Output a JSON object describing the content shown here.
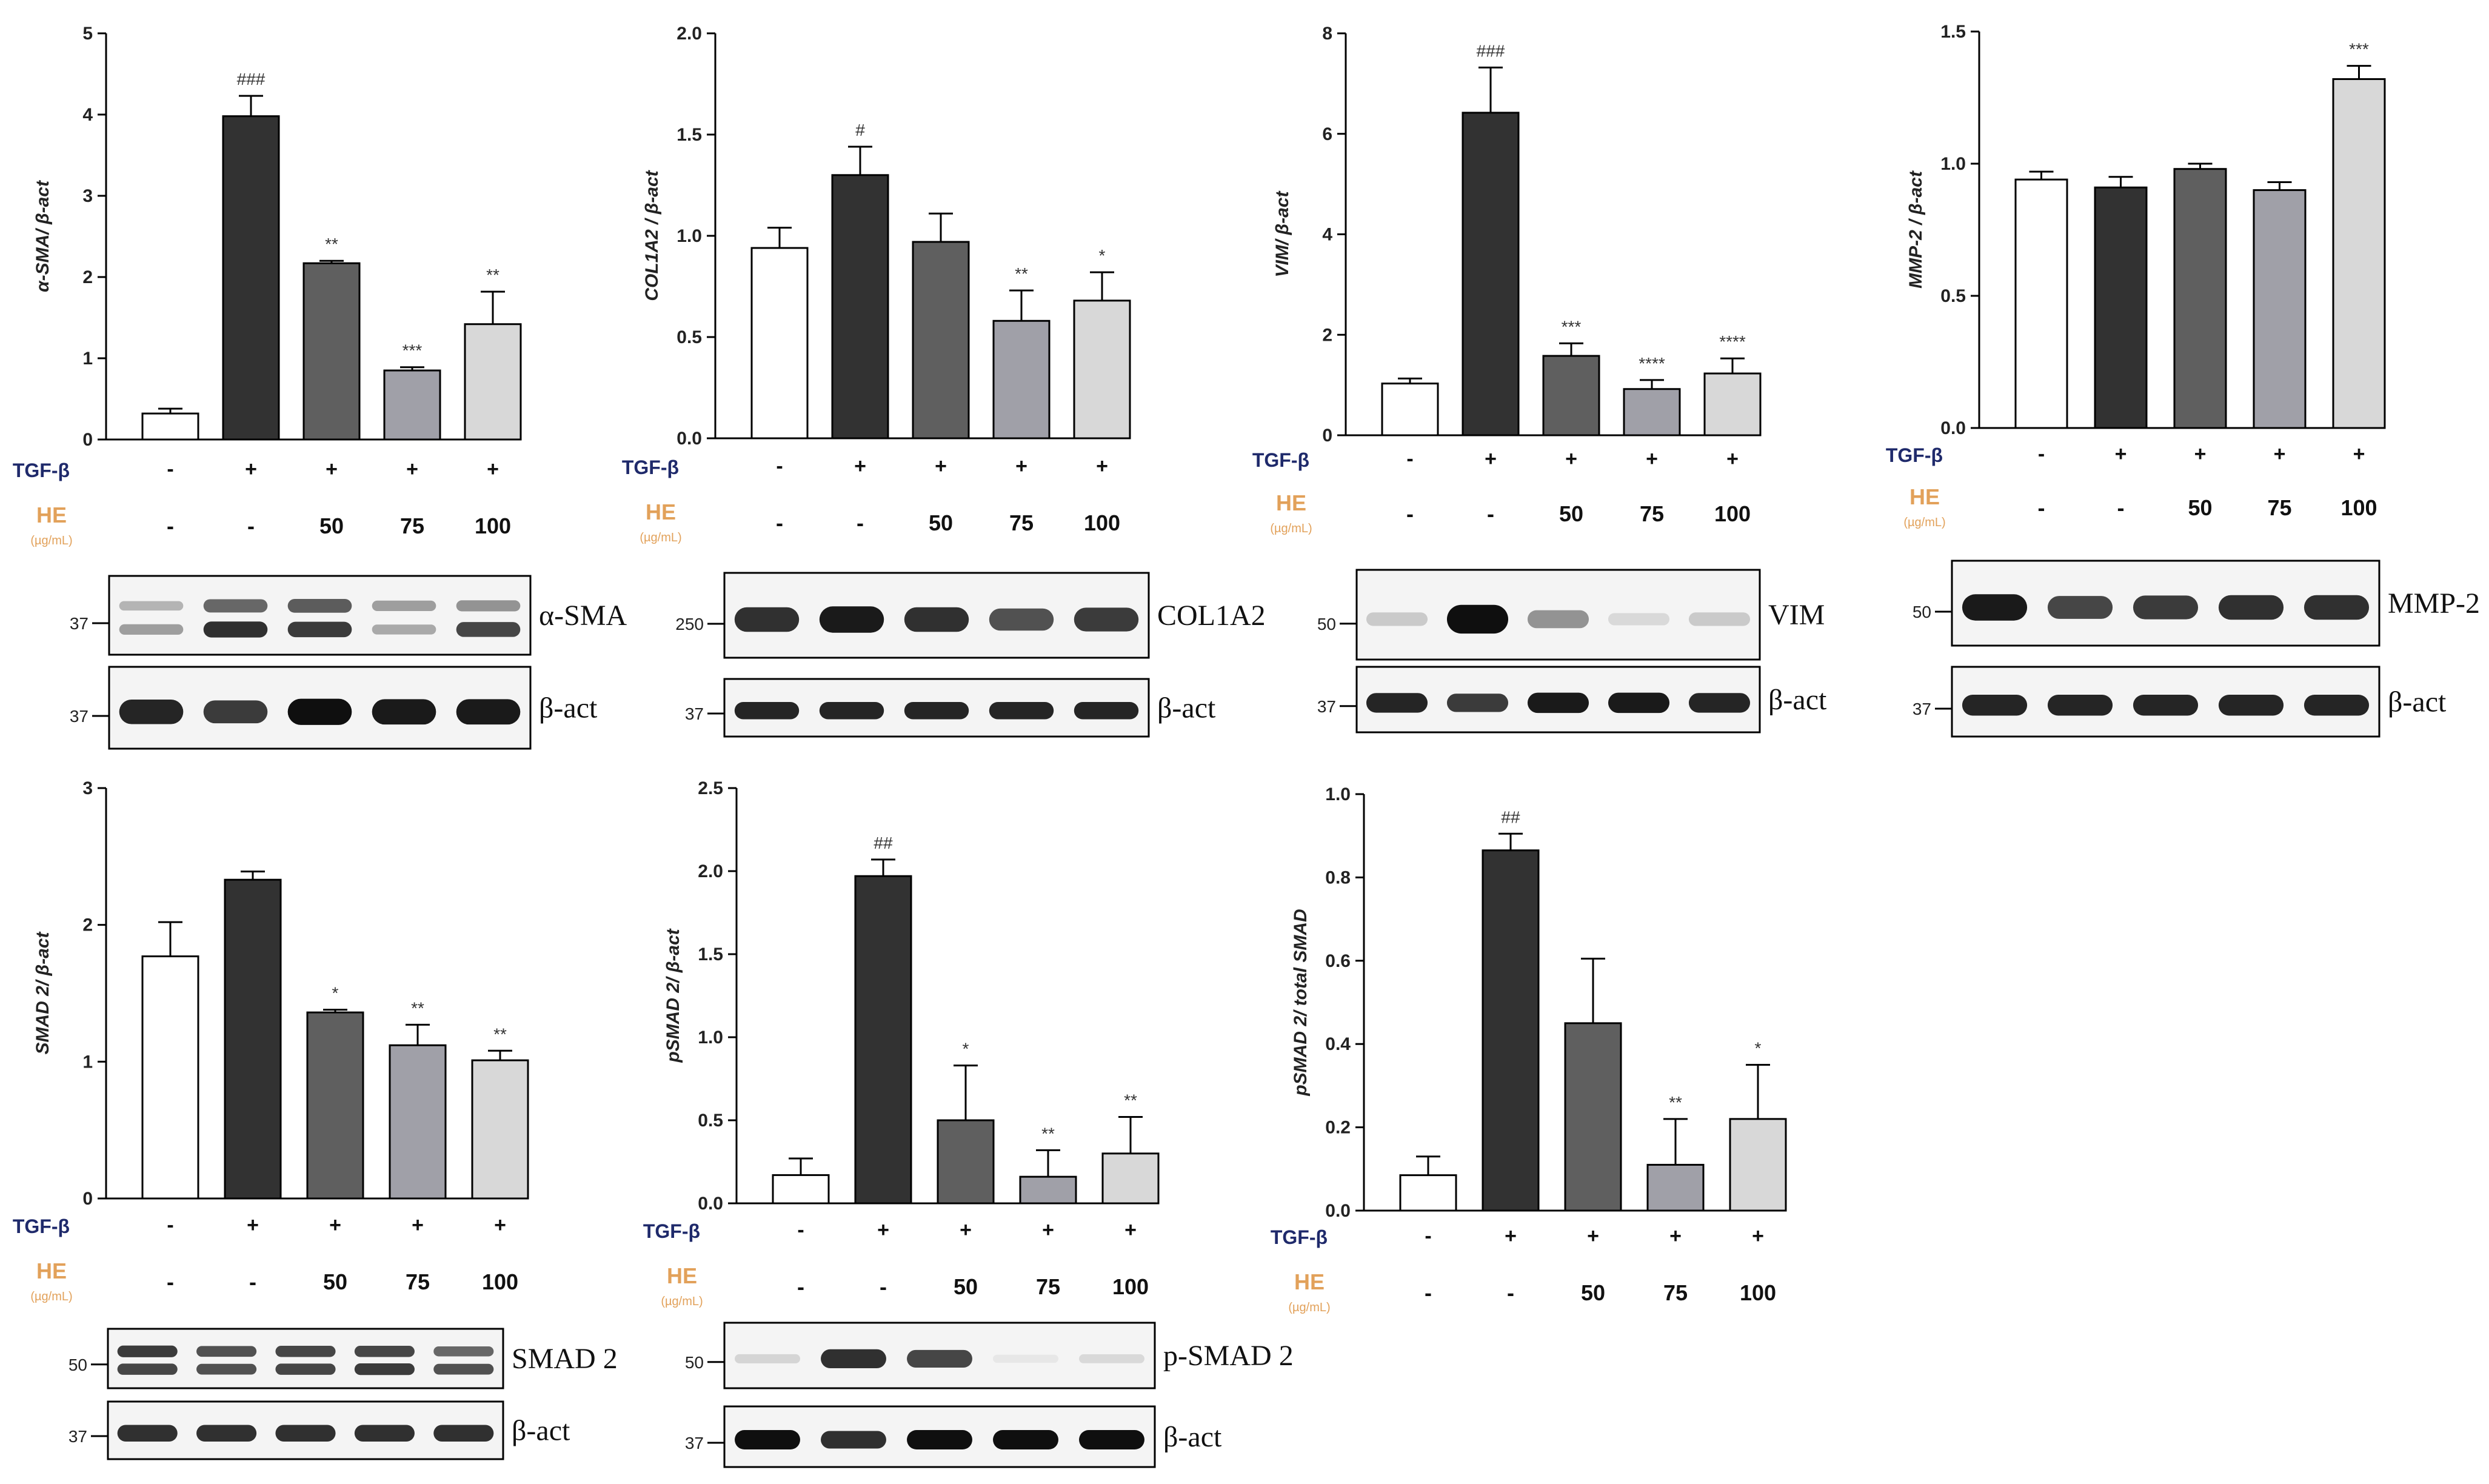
{
  "treatment": {
    "tgf_label": "TGF-β",
    "he_label": "HE",
    "he_unit": "(µg/mL)",
    "tgf_values": [
      "-",
      "+",
      "+",
      "+",
      "+"
    ],
    "he_values": [
      "-",
      "-",
      "50",
      "75",
      "100"
    ]
  },
  "colors": {
    "bars": [
      "#ffffff",
      "#323232",
      "#5f5f5f",
      "#a0a0a8",
      "#d8d8d8"
    ],
    "tgf_label": "#1f2a6b",
    "he_label": "#e2a15a"
  },
  "chart_data": [
    {
      "type": "bar",
      "panel": "alpha-sma",
      "ylabel": "α-SMA/ β-act",
      "ylim": [
        0,
        5
      ],
      "yticks": [
        0,
        1,
        2,
        3,
        4,
        5
      ],
      "values": [
        0.32,
        3.98,
        2.17,
        0.85,
        1.42
      ],
      "errors": [
        0.06,
        0.25,
        0.03,
        0.04,
        0.4
      ],
      "sig": [
        "",
        "###",
        "**",
        "***",
        "**"
      ],
      "blots": [
        {
          "label": "α-SMA",
          "marker": "37",
          "bands": [
            [
              0.25,
              0.35
            ],
            [
              0.6,
              0.85
            ],
            [
              0.65,
              0.8
            ],
            [
              0.35,
              0.3
            ],
            [
              0.4,
              0.75
            ]
          ]
        },
        {
          "label": "β-act",
          "marker": "37",
          "bands": [
            [
              0.9
            ],
            [
              0.8
            ],
            [
              1.0
            ],
            [
              0.95
            ],
            [
              0.95
            ]
          ]
        }
      ]
    },
    {
      "type": "bar",
      "panel": "col1a2",
      "ylabel": "COL1A2 / β-act",
      "ylim": [
        0,
        2
      ],
      "yticks": [
        0.0,
        0.5,
        1.0,
        1.5,
        2.0
      ],
      "values": [
        0.94,
        1.3,
        0.97,
        0.58,
        0.68
      ],
      "errors": [
        0.1,
        0.14,
        0.14,
        0.15,
        0.14
      ],
      "sig": [
        "",
        "#",
        "",
        "**",
        "*"
      ],
      "blots": [
        {
          "label": "COL1A2",
          "marker": "250",
          "bands": [
            [
              0.85
            ],
            [
              0.95
            ],
            [
              0.85
            ],
            [
              0.7
            ],
            [
              0.8
            ]
          ]
        },
        {
          "label": "β-act",
          "marker": "37",
          "bands": [
            [
              0.9
            ],
            [
              0.9
            ],
            [
              0.9
            ],
            [
              0.9
            ],
            [
              0.9
            ]
          ]
        }
      ]
    },
    {
      "type": "bar",
      "panel": "vim",
      "ylabel": "VIM/ β-act",
      "ylim": [
        0,
        8
      ],
      "yticks": [
        0,
        2,
        4,
        6,
        8
      ],
      "values": [
        1.03,
        6.42,
        1.58,
        0.92,
        1.23
      ],
      "errors": [
        0.1,
        0.9,
        0.25,
        0.18,
        0.3
      ],
      "sig": [
        "",
        "###",
        "***",
        "****",
        "****"
      ],
      "blots": [
        {
          "label": "VIM",
          "marker": "50",
          "bands": [
            [
              0.15
            ],
            [
              1.0
            ],
            [
              0.4
            ],
            [
              0.08
            ],
            [
              0.15
            ]
          ]
        },
        {
          "label": "β-act",
          "marker": "37",
          "bands": [
            [
              0.9
            ],
            [
              0.8
            ],
            [
              0.95
            ],
            [
              0.95
            ],
            [
              0.9
            ]
          ]
        }
      ]
    },
    {
      "type": "bar",
      "panel": "mmp-2",
      "ylabel": "MMP-2 / β-act",
      "ylim": [
        0,
        1.5
      ],
      "yticks": [
        0.0,
        0.5,
        1.0,
        1.5
      ],
      "values": [
        0.94,
        0.91,
        0.98,
        0.9,
        1.32
      ],
      "errors": [
        0.03,
        0.04,
        0.02,
        0.03,
        0.05
      ],
      "sig": [
        "",
        "",
        "",
        "",
        "***"
      ],
      "blots": [
        {
          "label": "MMP-2",
          "marker": "50",
          "bands": [
            [
              0.95
            ],
            [
              0.75
            ],
            [
              0.8
            ],
            [
              0.85
            ],
            [
              0.85
            ]
          ]
        },
        {
          "label": "β-act",
          "marker": "37",
          "bands": [
            [
              0.9
            ],
            [
              0.9
            ],
            [
              0.9
            ],
            [
              0.9
            ],
            [
              0.9
            ]
          ]
        }
      ]
    },
    {
      "type": "bar",
      "panel": "smad-2",
      "ylabel": "SMAD 2/ β-act",
      "ylim": [
        0,
        3
      ],
      "yticks": [
        0,
        1,
        2,
        3
      ],
      "values": [
        1.77,
        2.33,
        1.36,
        1.12,
        1.01
      ],
      "errors": [
        0.25,
        0.06,
        0.02,
        0.15,
        0.07
      ],
      "sig": [
        "",
        "",
        "*",
        "**",
        "**"
      ],
      "blots": [
        {
          "label": "SMAD 2",
          "marker": "50",
          "bands": [
            [
              0.8,
              0.75
            ],
            [
              0.7,
              0.7
            ],
            [
              0.75,
              0.75
            ],
            [
              0.75,
              0.8
            ],
            [
              0.6,
              0.7
            ]
          ]
        },
        {
          "label": "β-act",
          "marker": "37",
          "bands": [
            [
              0.85
            ],
            [
              0.85
            ],
            [
              0.85
            ],
            [
              0.85
            ],
            [
              0.85
            ]
          ]
        }
      ]
    },
    {
      "type": "bar",
      "panel": "p-smad-2",
      "ylabel": "pSMAD 2/ β-act",
      "ylim": [
        0,
        2.5
      ],
      "yticks": [
        0.0,
        0.5,
        1.0,
        1.5,
        2.0,
        2.5
      ],
      "values": [
        0.17,
        1.97,
        0.5,
        0.16,
        0.3
      ],
      "errors": [
        0.1,
        0.1,
        0.33,
        0.16,
        0.22
      ],
      "sig": [
        "",
        "##",
        "*",
        "**",
        "**"
      ],
      "blots": [
        {
          "label": "p-SMAD 2",
          "marker": "50",
          "bands": [
            [
              0.1
            ],
            [
              0.85
            ],
            [
              0.75
            ],
            [
              0.02
            ],
            [
              0.08
            ]
          ]
        },
        {
          "label": "β-act",
          "marker": "37",
          "bands": [
            [
              1.0
            ],
            [
              0.85
            ],
            [
              1.0
            ],
            [
              1.0
            ],
            [
              1.0
            ]
          ]
        }
      ]
    },
    {
      "type": "bar",
      "panel": "psmad-total",
      "ylabel": "pSMAD 2/ total SMAD",
      "ylim": [
        0,
        1
      ],
      "yticks": [
        0.0,
        0.2,
        0.4,
        0.6,
        0.8,
        1.0
      ],
      "values": [
        0.085,
        0.865,
        0.45,
        0.11,
        0.22
      ],
      "errors": [
        0.045,
        0.04,
        0.155,
        0.11,
        0.13
      ],
      "sig": [
        "",
        "##",
        "",
        "**",
        "*"
      ],
      "blots": []
    }
  ]
}
